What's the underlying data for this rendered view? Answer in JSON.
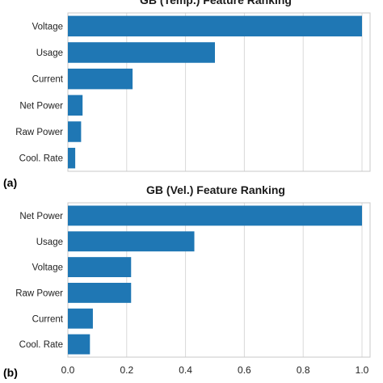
{
  "chart_data": [
    {
      "type": "bar",
      "orientation": "horizontal",
      "panel_label": "(a)",
      "title": "GB (Temp.) Feature Ranking",
      "categories": [
        "Voltage",
        "Usage",
        "Current",
        "Net Power",
        "Raw Power",
        "Cool. Rate"
      ],
      "values": [
        1.0,
        0.5,
        0.22,
        0.05,
        0.045,
        0.025
      ],
      "xlim": [
        0,
        1.0
      ],
      "xticks": [],
      "grid": true,
      "color": "#1f77b4"
    },
    {
      "type": "bar",
      "orientation": "horizontal",
      "panel_label": "(b)",
      "title": "GB (Vel.) Feature Ranking",
      "categories": [
        "Net Power",
        "Usage",
        "Voltage",
        "Raw Power",
        "Current",
        "Cool. Rate"
      ],
      "values": [
        1.0,
        0.43,
        0.215,
        0.215,
        0.085,
        0.075
      ],
      "xlim": [
        0,
        1.0
      ],
      "xticks": [
        "0.0",
        "0.2",
        "0.4",
        "0.6",
        "0.8",
        "1.0"
      ],
      "grid": true,
      "color": "#1f77b4"
    }
  ]
}
